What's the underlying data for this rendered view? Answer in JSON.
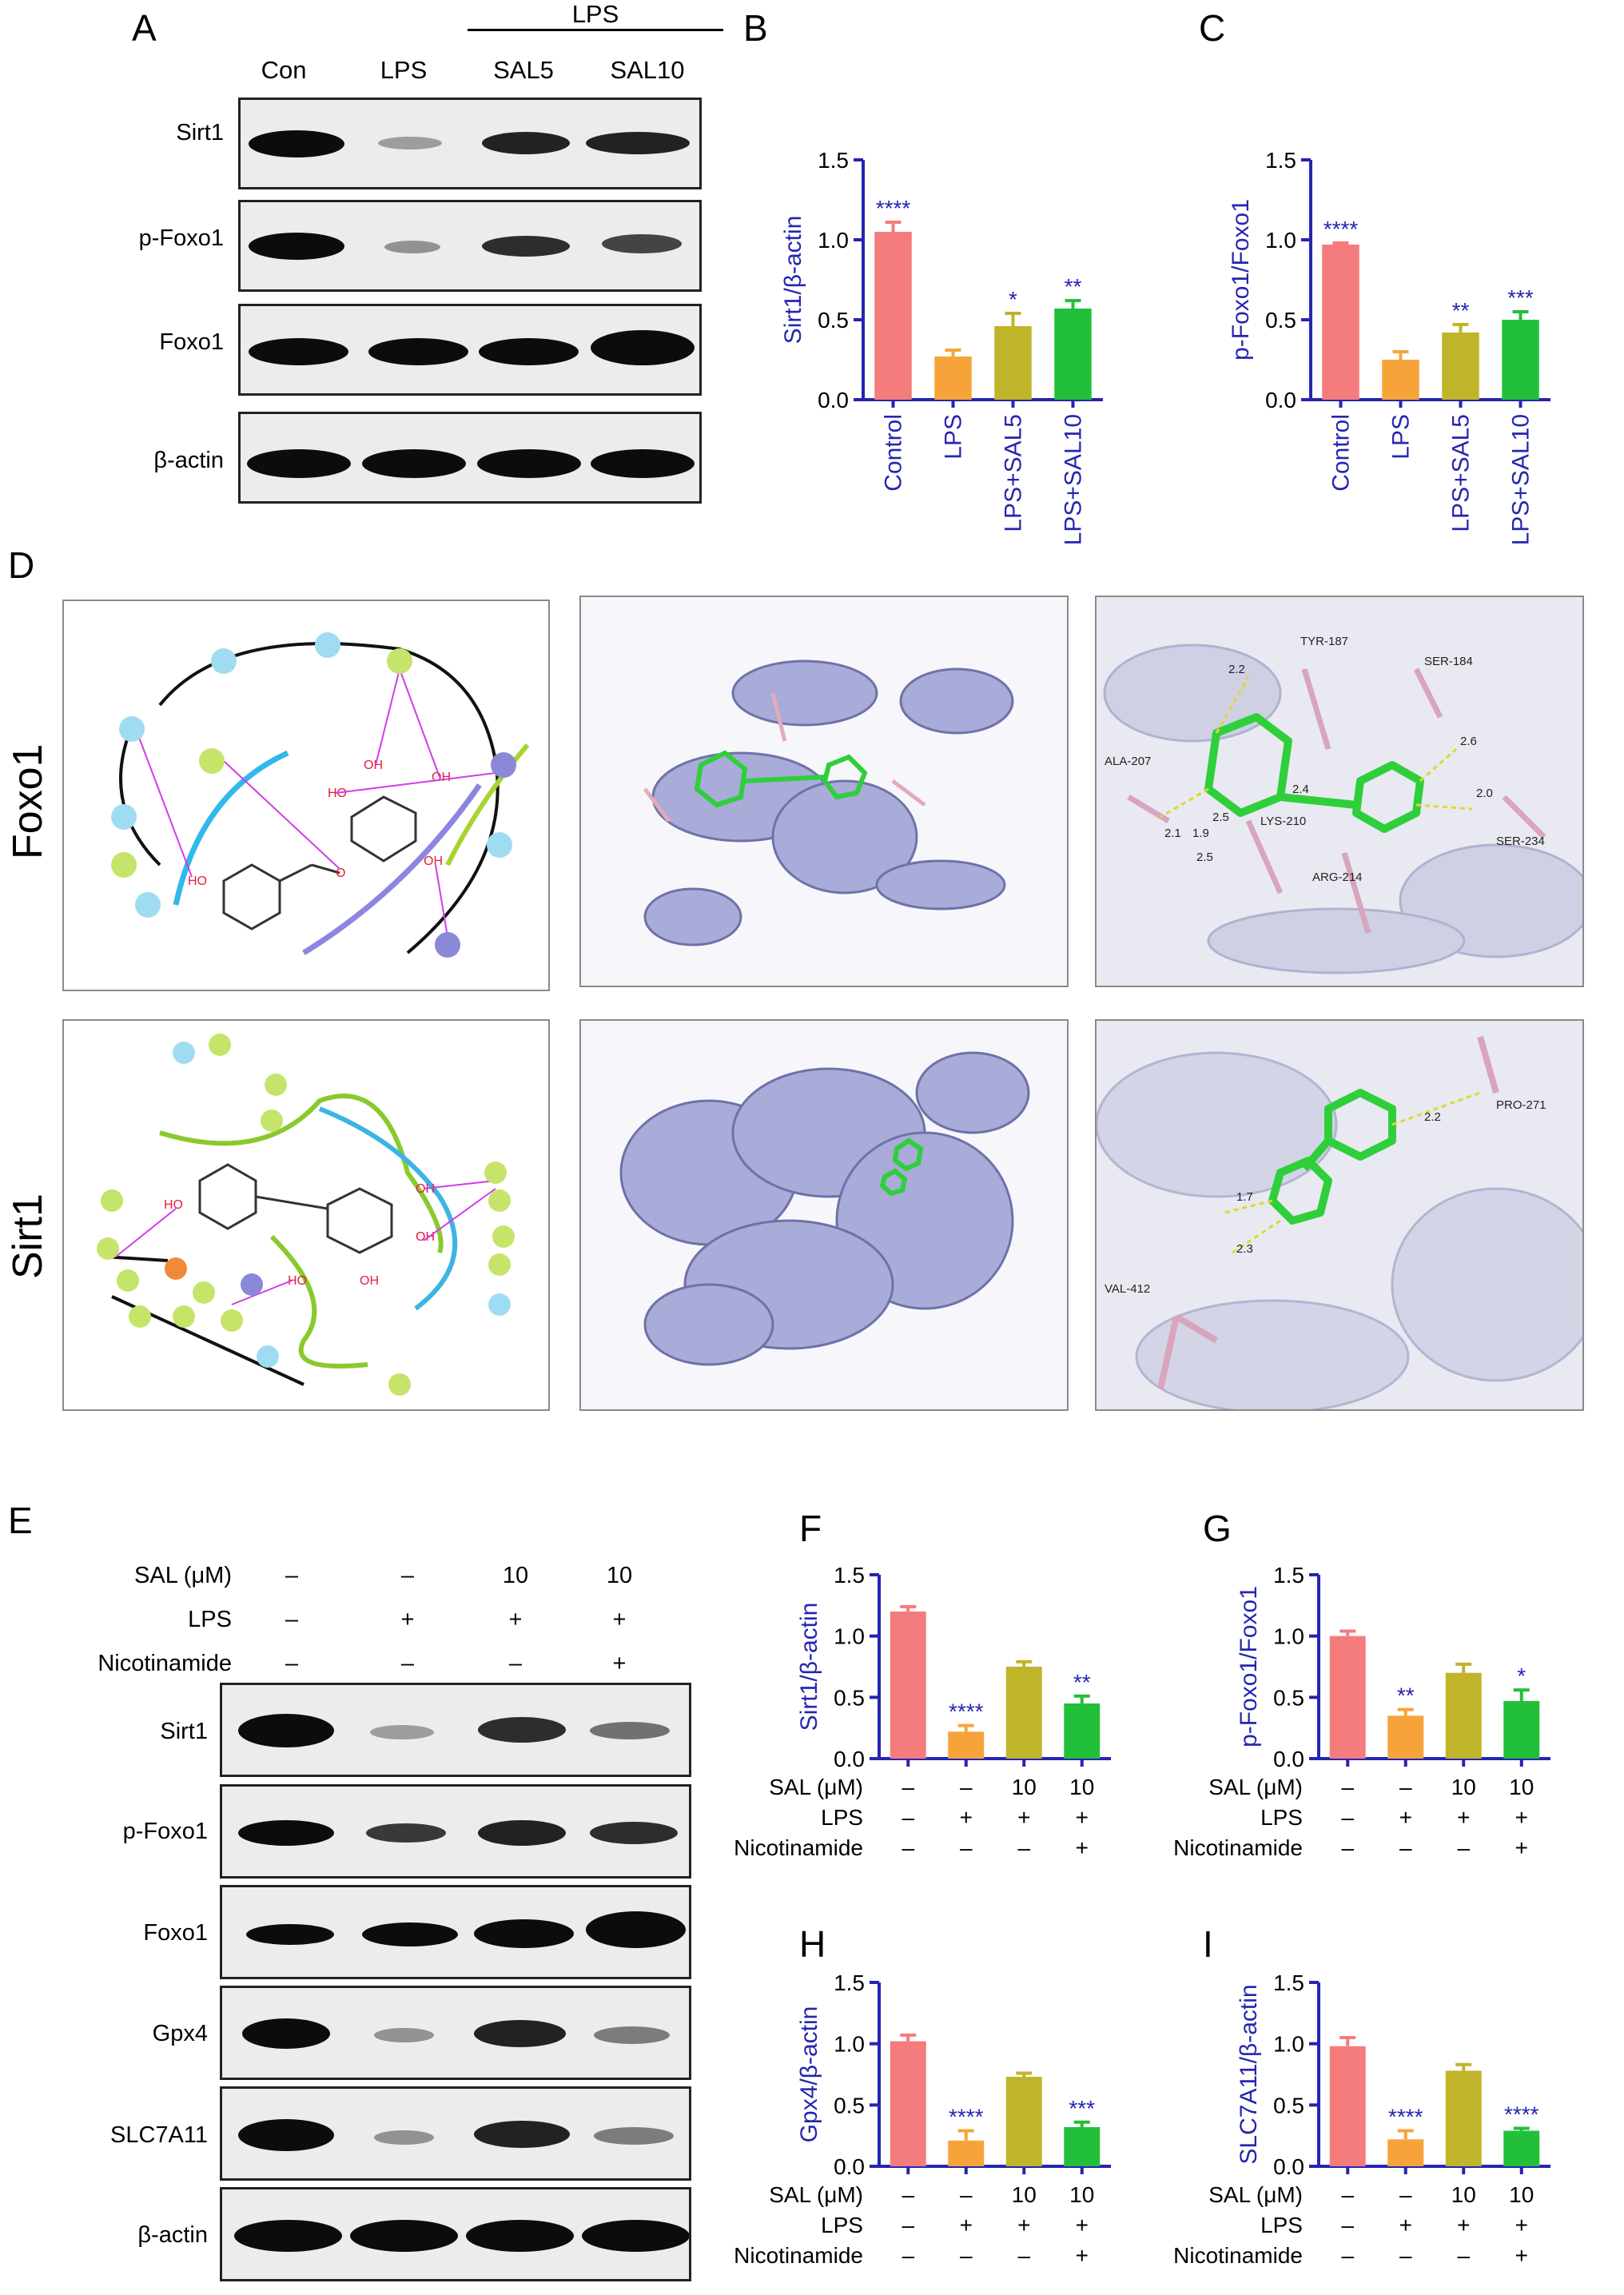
{
  "panels": {
    "A": "A",
    "B": "B",
    "C": "C",
    "D": "D",
    "E": "E",
    "F": "F",
    "G": "G",
    "H": "H",
    "I": "I"
  },
  "blotA": {
    "header": "LPS",
    "lanes": [
      "Con",
      "LPS",
      "SAL5",
      "SAL10"
    ],
    "rows": [
      "Sirt1",
      "p-Foxo1",
      "Foxo1",
      "β-actin"
    ]
  },
  "blotE": {
    "conditions": [
      {
        "label": "SAL (μM)",
        "values": [
          "–",
          "–",
          "10",
          "10"
        ]
      },
      {
        "label": "LPS",
        "values": [
          "–",
          "+",
          "+",
          "+"
        ]
      },
      {
        "label": "Nicotinamide",
        "values": [
          "–",
          "–",
          "–",
          "+"
        ]
      }
    ],
    "rows": [
      "Sirt1",
      "p-Foxo1",
      "Foxo1",
      "Gpx4",
      "SLC7A11",
      "β-actin"
    ]
  },
  "docking": {
    "rows": [
      "Foxo1",
      "Sirt1"
    ],
    "foxo1_residues": [
      "TYR-187",
      "SER-184",
      "ALA-207",
      "LYS-210",
      "ARG-214",
      "SER-234"
    ],
    "foxo1_distances": [
      "2.2",
      "2.4",
      "2.6",
      "2.0",
      "2.5",
      "1.9",
      "2.1",
      "2.5"
    ],
    "sirt1_residues": [
      "PRO-271",
      "VAL-412"
    ],
    "sirt1_distances": [
      "2.2",
      "1.7",
      "2.3"
    ]
  },
  "colors": {
    "control": "#f47c7c",
    "lps": "#f6a43a",
    "sal5": "#c0b42a",
    "sal10": "#22c03a",
    "axis": "#2525b0",
    "star": "#2525b0"
  },
  "chart_data": [
    {
      "panel": "B",
      "type": "bar",
      "ylabel": "Sirt1/β-actin",
      "categories": [
        "Control",
        "LPS",
        "LPS+SAL5",
        "LPS+SAL10"
      ],
      "values": [
        1.05,
        0.27,
        0.46,
        0.57
      ],
      "errors": [
        0.06,
        0.04,
        0.08,
        0.05
      ],
      "significance": [
        "****",
        "",
        "*",
        "**"
      ],
      "ylim": [
        0,
        1.5
      ],
      "yticks": [
        "0.0",
        "0.5",
        "1.0",
        "1.5"
      ]
    },
    {
      "panel": "C",
      "type": "bar",
      "ylabel": "p-Foxo1/Foxo1",
      "categories": [
        "Control",
        "LPS",
        "LPS+SAL5",
        "LPS+SAL10"
      ],
      "values": [
        0.97,
        0.25,
        0.42,
        0.5
      ],
      "errors": [
        0.01,
        0.05,
        0.05,
        0.05
      ],
      "significance": [
        "****",
        "",
        "**",
        "***"
      ],
      "ylim": [
        0,
        1.5
      ],
      "yticks": [
        "0.0",
        "0.5",
        "1.0",
        "1.5"
      ]
    },
    {
      "panel": "F",
      "type": "bar",
      "ylabel": "Sirt1/β-actin",
      "groups": [
        "SAL (μM)",
        "LPS",
        "Nicotinamide"
      ],
      "group_values": [
        [
          "–",
          "–",
          "10",
          "10"
        ],
        [
          "–",
          "+",
          "+",
          "+"
        ],
        [
          "–",
          "–",
          "–",
          "+"
        ]
      ],
      "values": [
        1.2,
        0.22,
        0.75,
        0.45
      ],
      "errors": [
        0.04,
        0.05,
        0.04,
        0.06
      ],
      "significance": [
        "",
        "****",
        "",
        "**"
      ],
      "ylim": [
        0,
        1.5
      ],
      "yticks": [
        "0.0",
        "0.5",
        "1.0",
        "1.5"
      ]
    },
    {
      "panel": "G",
      "type": "bar",
      "ylabel": "p-Foxo1/Foxo1",
      "groups": [
        "SAL (μM)",
        "LPS",
        "Nicotinamide"
      ],
      "group_values": [
        [
          "–",
          "–",
          "10",
          "10"
        ],
        [
          "–",
          "+",
          "+",
          "+"
        ],
        [
          "–",
          "–",
          "–",
          "+"
        ]
      ],
      "values": [
        1.0,
        0.35,
        0.7,
        0.47
      ],
      "errors": [
        0.04,
        0.05,
        0.07,
        0.09
      ],
      "significance": [
        "",
        "**",
        "",
        "*"
      ],
      "ylim": [
        0,
        1.5
      ],
      "yticks": [
        "0.0",
        "0.5",
        "1.0",
        "1.5"
      ]
    },
    {
      "panel": "H",
      "type": "bar",
      "ylabel": "Gpx4/β-actin",
      "groups": [
        "SAL (μM)",
        "LPS",
        "Nicotinamide"
      ],
      "group_values": [
        [
          "–",
          "–",
          "10",
          "10"
        ],
        [
          "–",
          "+",
          "+",
          "+"
        ],
        [
          "–",
          "–",
          "–",
          "+"
        ]
      ],
      "values": [
        1.02,
        0.21,
        0.73,
        0.32
      ],
      "errors": [
        0.05,
        0.08,
        0.03,
        0.04
      ],
      "significance": [
        "",
        "****",
        "",
        "***"
      ],
      "ylim": [
        0,
        1.5
      ],
      "yticks": [
        "0.0",
        "0.5",
        "1.0",
        "1.5"
      ]
    },
    {
      "panel": "I",
      "type": "bar",
      "ylabel": "SLC7A11/β-actin",
      "groups": [
        "SAL (μM)",
        "LPS",
        "Nicotinamide"
      ],
      "group_values": [
        [
          "–",
          "–",
          "10",
          "10"
        ],
        [
          "–",
          "+",
          "+",
          "+"
        ],
        [
          "–",
          "–",
          "–",
          "+"
        ]
      ],
      "values": [
        0.98,
        0.22,
        0.78,
        0.29
      ],
      "errors": [
        0.07,
        0.07,
        0.05,
        0.02
      ],
      "significance": [
        "",
        "****",
        "",
        "****"
      ],
      "ylim": [
        0,
        1.5
      ],
      "yticks": [
        "0.0",
        "0.5",
        "1.0",
        "1.5"
      ]
    }
  ]
}
